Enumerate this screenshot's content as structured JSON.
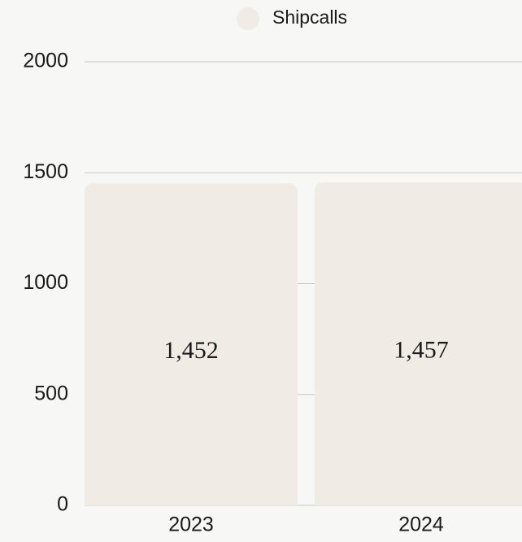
{
  "chart_data": {
    "type": "bar",
    "categories": [
      "2023",
      "2024"
    ],
    "series": [
      {
        "name": "Shipcalls",
        "color": "#f0ebe5",
        "values": [
          1452,
          1457
        ],
        "value_labels": [
          "1,452",
          "1,457"
        ]
      }
    ],
    "ylim": [
      0,
      2000
    ],
    "yticks": [
      0,
      500,
      1000,
      1500,
      2000
    ],
    "grid": true,
    "legend": "top"
  }
}
